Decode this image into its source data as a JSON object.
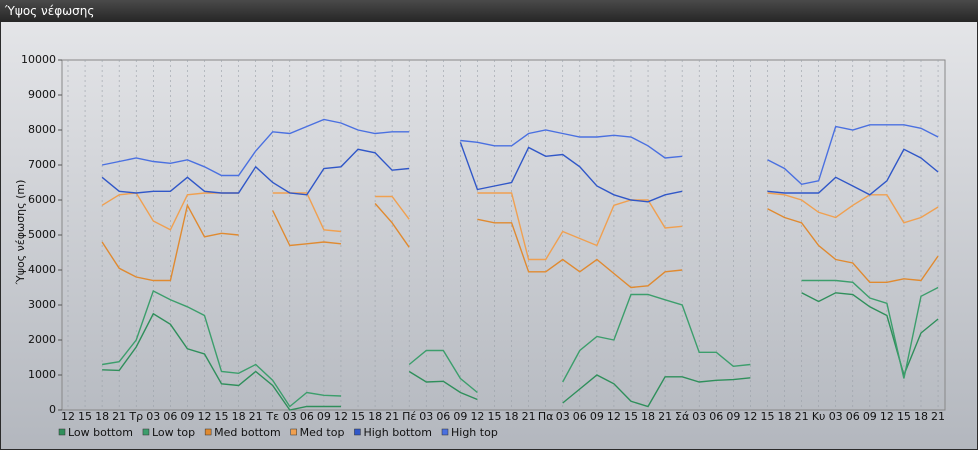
{
  "title": "Ύψος νέφωσης",
  "chart_data": {
    "type": "line",
    "y_label": "Ύψος νέφωσης (m)",
    "categories": [
      "12",
      "15",
      "18",
      "21",
      "Τρ",
      "03",
      "06",
      "09",
      "12",
      "15",
      "18",
      "21",
      "Τε",
      "03",
      "06",
      "09",
      "12",
      "15",
      "18",
      "21",
      "Πέ",
      "03",
      "06",
      "09",
      "12",
      "15",
      "18",
      "21",
      "Πα",
      "03",
      "06",
      "09",
      "12",
      "15",
      "18",
      "21",
      "Σά",
      "03",
      "06",
      "09",
      "12",
      "15",
      "18",
      "21",
      "Κυ",
      "03",
      "06",
      "09",
      "12",
      "15",
      "18",
      "21"
    ],
    "ylim": [
      0,
      10000
    ],
    "yticks": [
      0,
      1000,
      2000,
      3000,
      4000,
      5000,
      6000,
      7000,
      8000,
      9000,
      10000
    ],
    "grid": true,
    "series": [
      {
        "name": "Low bottom",
        "color": "#2f8f5b",
        "values": [
          null,
          null,
          1150,
          1130,
          1800,
          2750,
          2450,
          1750,
          1600,
          750,
          700,
          1100,
          700,
          0,
          100,
          100,
          100,
          null,
          null,
          null,
          1100,
          800,
          820,
          500,
          300,
          null,
          null,
          null,
          null,
          200,
          600,
          1000,
          750,
          250,
          100,
          950,
          950,
          800,
          850,
          870,
          920,
          null,
          null,
          3350,
          3100,
          3350,
          3300,
          2950,
          2700,
          1000,
          2200,
          2600
        ]
      },
      {
        "name": "Low top",
        "color": "#3c9e6c",
        "values": [
          null,
          null,
          1300,
          1380,
          2000,
          3400,
          3150,
          2950,
          2700,
          1100,
          1050,
          1300,
          850,
          100,
          500,
          420,
          400,
          null,
          null,
          null,
          1300,
          1700,
          1700,
          900,
          500,
          null,
          null,
          null,
          null,
          800,
          1700,
          2100,
          2000,
          3300,
          3300,
          3150,
          3000,
          1650,
          1650,
          1250,
          1300,
          null,
          null,
          3700,
          3700,
          3700,
          3650,
          3200,
          3050,
          900,
          3250,
          3500
        ]
      },
      {
        "name": "Med bottom",
        "color": "#e08a30",
        "values": [
          null,
          null,
          4800,
          4050,
          3800,
          3700,
          3700,
          5850,
          4950,
          5050,
          5000,
          null,
          5700,
          4700,
          4750,
          4800,
          4750,
          null,
          5900,
          5350,
          4650,
          null,
          null,
          null,
          5450,
          5350,
          5350,
          3950,
          3950,
          4300,
          3950,
          4300,
          3900,
          3500,
          3550,
          3950,
          4000,
          null,
          null,
          null,
          null,
          5750,
          5500,
          5350,
          4700,
          4300,
          4200,
          3650,
          3650,
          3750,
          3700,
          4400
        ]
      },
      {
        "name": "Med top",
        "color": "#f0a050",
        "values": [
          null,
          null,
          5850,
          6150,
          6200,
          5400,
          5150,
          6150,
          6200,
          6200,
          6200,
          null,
          6200,
          6200,
          6200,
          5150,
          5100,
          null,
          6100,
          6100,
          5450,
          null,
          null,
          null,
          6200,
          6200,
          6200,
          4300,
          4300,
          5100,
          4900,
          4700,
          5850,
          6000,
          6000,
          5200,
          5250,
          null,
          null,
          null,
          null,
          6200,
          6150,
          6000,
          5650,
          5500,
          5850,
          6150,
          6150,
          5350,
          5500,
          5800
        ]
      },
      {
        "name": "High bottom",
        "color": "#3057c8",
        "values": [
          null,
          null,
          6650,
          6250,
          6200,
          6250,
          6250,
          6650,
          6250,
          6200,
          6200,
          6950,
          6500,
          6200,
          6150,
          6900,
          6950,
          7450,
          7350,
          6850,
          6900,
          null,
          null,
          7650,
          6300,
          6400,
          6500,
          7500,
          7250,
          7300,
          6950,
          6400,
          6150,
          6000,
          5950,
          6150,
          6250,
          null,
          null,
          null,
          null,
          6250,
          6200,
          6200,
          6200,
          6650,
          6400,
          6150,
          6550,
          7450,
          7200,
          6800
        ]
      },
      {
        "name": "High top",
        "color": "#4a70e0",
        "values": [
          null,
          null,
          7000,
          7100,
          7200,
          7100,
          7050,
          7150,
          6950,
          6700,
          6700,
          7400,
          7950,
          7900,
          8100,
          8300,
          8200,
          8000,
          7900,
          7950,
          7950,
          null,
          null,
          7700,
          7650,
          7550,
          7550,
          7900,
          8000,
          7900,
          7800,
          7800,
          7850,
          7800,
          7550,
          7200,
          7250,
          null,
          null,
          null,
          null,
          7150,
          6900,
          6450,
          6550,
          8100,
          8000,
          8150,
          8150,
          8150,
          8050,
          7800
        ]
      }
    ]
  }
}
